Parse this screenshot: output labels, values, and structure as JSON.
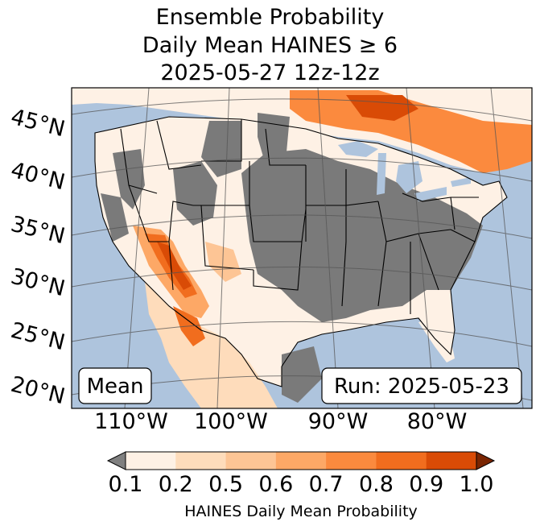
{
  "title": {
    "line1": "Ensemble Probability",
    "line2": "Daily Mean HAINES ≥ 6",
    "line3": "2025-05-27 12z-12z"
  },
  "map": {
    "lat_labels": [
      "45°N",
      "40°N",
      "35°N",
      "30°N",
      "25°N",
      "20°N"
    ],
    "lon_labels": [
      "110°W",
      "100°W",
      "90°W",
      "80°W"
    ],
    "stat_box": "Mean",
    "run_box": "Run: 2025-05-23",
    "colors": {
      "ocean": "#aec4dd",
      "no_data": "#7a7a7a",
      "below_min": "#808080"
    }
  },
  "colorbar": {
    "ticks": [
      "0.1",
      "0.2",
      "0.5",
      "0.6",
      "0.7",
      "0.8",
      "0.9",
      "1.0"
    ],
    "colors": [
      "#fef1e5",
      "#fedcbb",
      "#fdc595",
      "#fda866",
      "#fb8a3e",
      "#f16d1e",
      "#d94b06",
      "#a83202"
    ],
    "under_color": "#808080",
    "over_color": "#7a2502",
    "label": "HAINES Daily Mean Probability"
  }
}
